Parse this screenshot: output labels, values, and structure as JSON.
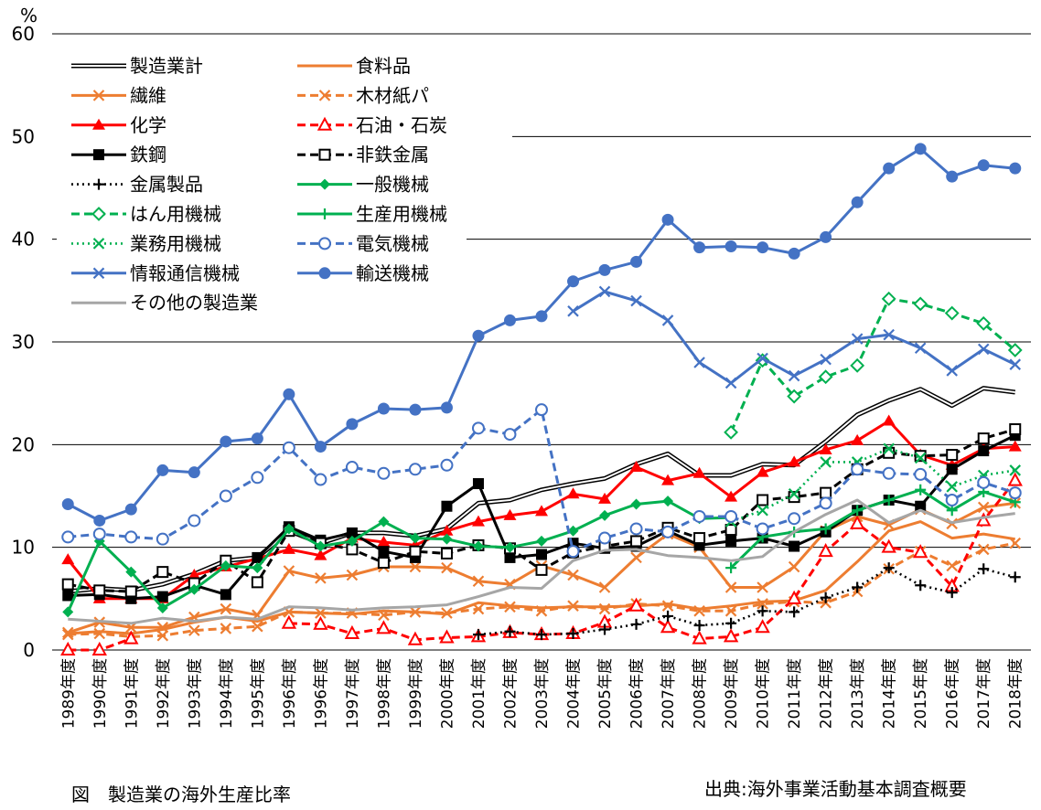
{
  "chart_data": {
    "type": "line",
    "ylabel": "%",
    "ylim": [
      0,
      60
    ],
    "yticks": [
      0,
      10,
      20,
      30,
      40,
      50,
      60
    ],
    "grid": "horizontal",
    "legend_position": "top-left",
    "categories": [
      "1989年度",
      "1990年度",
      "1991年度",
      "1992年度",
      "1993年度",
      "1994年度",
      "1995年度",
      "1996年度",
      "1996年度",
      "1997年度",
      "1998年度",
      "1999年度",
      "2000年度",
      "2001年度",
      "2002年度",
      "2003年度",
      "2004年度",
      "2005年度",
      "2006年度",
      "2007年度",
      "2008年度",
      "2009年度",
      "2010年度",
      "2011年度",
      "2012年度",
      "2013年度",
      "2014年度",
      "2015年度",
      "2016年度",
      "2017年度",
      "2018年度"
    ],
    "series": [
      {
        "name": "製造業計",
        "color": "#000000",
        "style": "double",
        "marker": "none",
        "values": [
          5.7,
          6.0,
          5.8,
          6.4,
          7.4,
          8.7,
          9.0,
          11.6,
          10.4,
          11.4,
          11.4,
          11.1,
          11.8,
          14.3,
          14.6,
          15.6,
          16.2,
          16.7,
          18.1,
          19.1,
          17.0,
          17.0,
          18.1,
          18.0,
          20.3,
          22.9,
          24.3,
          25.4,
          23.8,
          25.5,
          25.1
        ]
      },
      {
        "name": "食料品",
        "color": "#ED7D31",
        "style": "solid",
        "marker": "none",
        "values": [
          1.6,
          1.8,
          1.6,
          2.0,
          2.7,
          3.2,
          2.8,
          3.7,
          3.6,
          3.5,
          3.8,
          3.7,
          3.5,
          4.6,
          4.3,
          4.1,
          4.2,
          4.2,
          4.3,
          4.5,
          4.0,
          4.3,
          4.7,
          4.8,
          5.8,
          8.6,
          11.6,
          12.5,
          10.9,
          11.3,
          10.8
        ]
      },
      {
        "name": "繊維",
        "color": "#ED7D31",
        "style": "solid",
        "marker": "x",
        "values": [
          1.7,
          2.7,
          2.2,
          2.2,
          3.2,
          4.0,
          3.4,
          7.7,
          7.0,
          7.3,
          8.1,
          8.1,
          8.0,
          6.7,
          6.4,
          8.2,
          7.3,
          6.1,
          9.0,
          11.3,
          10.0,
          6.1,
          6.1,
          8.1,
          11.6,
          13.0,
          12.2,
          13.7,
          12.3,
          13.9,
          14.3
        ]
      },
      {
        "name": "木材紙パ",
        "color": "#ED7D31",
        "style": "dash",
        "marker": "x",
        "values": [
          1.5,
          1.6,
          1.3,
          1.4,
          1.9,
          2.1,
          2.3,
          3.7,
          3.6,
          3.6,
          3.4,
          3.7,
          3.6,
          4.0,
          4.2,
          3.8,
          4.3,
          4.0,
          4.5,
          4.3,
          3.8,
          3.8,
          4.5,
          4.7,
          4.6,
          5.7,
          7.9,
          9.6,
          8.2,
          9.8,
          10.4
        ]
      },
      {
        "name": "化学",
        "color": "#FF0000",
        "style": "solid",
        "marker": "triangle",
        "values": [
          8.8,
          5.0,
          5.0,
          5.0,
          7.3,
          8.1,
          8.9,
          9.8,
          9.2,
          10.9,
          10.5,
          10.2,
          11.6,
          12.5,
          13.1,
          13.5,
          15.2,
          14.7,
          17.8,
          16.5,
          17.2,
          14.9,
          17.3,
          18.3,
          19.5,
          20.4,
          22.3,
          19.0,
          18.0,
          19.6,
          19.8
        ]
      },
      {
        "name": "石油・石炭",
        "color": "#FF0000",
        "style": "dash",
        "marker": "triangle-open",
        "values": [
          0.0,
          0.0,
          1.1,
          null,
          null,
          null,
          null,
          2.6,
          2.5,
          1.6,
          2.1,
          1.0,
          1.2,
          1.3,
          1.7,
          1.5,
          1.6,
          2.7,
          4.3,
          2.2,
          1.1,
          1.3,
          2.2,
          5.0,
          9.6,
          12.3,
          10.0,
          9.5,
          6.2,
          12.6,
          16.5
        ]
      },
      {
        "name": "鉄鋼",
        "color": "#000000",
        "style": "solid",
        "marker": "square",
        "values": [
          5.3,
          5.4,
          5.0,
          5.2,
          6.3,
          5.4,
          9.0,
          12.0,
          10.7,
          11.4,
          9.6,
          9.0,
          14.0,
          16.2,
          9.0,
          9.3,
          10.4,
          9.9,
          10.1,
          11.6,
          10.2,
          10.6,
          10.9,
          10.1,
          11.5,
          13.6,
          14.6,
          14.0,
          17.6,
          19.4,
          20.9
        ]
      },
      {
        "name": "非鉄金属",
        "color": "#000000",
        "style": "dash",
        "marker": "square-open",
        "values": [
          6.4,
          5.8,
          5.7,
          7.6,
          6.5,
          8.7,
          6.6,
          11.6,
          10.4,
          9.8,
          8.5,
          9.6,
          9.4,
          10.2,
          9.9,
          7.8,
          9.5,
          10.1,
          10.6,
          11.9,
          10.9,
          11.7,
          14.6,
          14.9,
          15.3,
          17.6,
          19.2,
          18.9,
          19.0,
          20.6,
          21.5
        ]
      },
      {
        "name": "金属製品",
        "color": "#000000",
        "style": "dot",
        "marker": "plus",
        "values": [
          null,
          null,
          null,
          null,
          null,
          null,
          null,
          null,
          null,
          null,
          null,
          null,
          null,
          1.5,
          1.8,
          1.5,
          1.6,
          2.0,
          2.5,
          3.3,
          2.4,
          2.6,
          3.8,
          3.7,
          5.1,
          6.1,
          8.0,
          6.3,
          5.6,
          7.9,
          7.1
        ]
      },
      {
        "name": "一般機械",
        "color": "#00B050",
        "style": "solid",
        "marker": "diamond",
        "values": [
          3.7,
          10.6,
          7.6,
          4.1,
          5.9,
          8.2,
          8.0,
          11.8,
          10.1,
          10.6,
          12.5,
          10.9,
          10.8,
          10.1,
          10.0,
          10.6,
          11.6,
          13.1,
          14.2,
          14.5,
          12.8,
          12.9,
          null,
          null,
          null,
          null,
          null,
          null,
          null,
          null,
          null
        ]
      },
      {
        "name": "はん用機械",
        "color": "#00B050",
        "style": "dash",
        "marker": "diamond-open",
        "values": [
          null,
          null,
          null,
          null,
          null,
          null,
          null,
          null,
          null,
          null,
          null,
          null,
          null,
          null,
          null,
          null,
          null,
          null,
          null,
          null,
          null,
          21.2,
          28.2,
          24.7,
          26.6,
          27.7,
          34.2,
          33.7,
          32.8,
          31.8,
          29.2
        ]
      },
      {
        "name": "生産用機械",
        "color": "#00B050",
        "style": "solid",
        "marker": "plus",
        "values": [
          null,
          null,
          null,
          null,
          null,
          null,
          null,
          null,
          null,
          null,
          null,
          null,
          null,
          null,
          null,
          null,
          null,
          null,
          null,
          null,
          null,
          8.0,
          11.0,
          11.5,
          11.8,
          13.6,
          14.6,
          15.6,
          13.6,
          15.4,
          14.4
        ]
      },
      {
        "name": "業務用機械",
        "color": "#00B050",
        "style": "dot",
        "marker": "x",
        "values": [
          null,
          null,
          null,
          null,
          null,
          null,
          null,
          null,
          null,
          null,
          null,
          null,
          null,
          null,
          null,
          null,
          null,
          null,
          null,
          null,
          null,
          12.5,
          13.6,
          15.2,
          18.3,
          18.3,
          19.6,
          18.7,
          15.9,
          17.0,
          17.5
        ]
      },
      {
        "name": "電気機械",
        "color": "#4472C4",
        "style": "dash",
        "marker": "circle-open",
        "values": [
          11.0,
          11.3,
          11.0,
          10.8,
          12.6,
          15.0,
          16.8,
          19.7,
          16.6,
          17.8,
          17.2,
          17.6,
          18.0,
          21.6,
          21.0,
          23.4,
          9.6,
          10.9,
          11.8,
          11.5,
          13.0,
          13.0,
          11.8,
          12.8,
          14.3,
          17.6,
          17.2,
          17.1,
          14.6,
          16.3,
          15.3
        ]
      },
      {
        "name": "情報通信機械",
        "color": "#4472C4",
        "style": "solid",
        "marker": "x",
        "values": [
          null,
          null,
          null,
          null,
          null,
          null,
          null,
          null,
          null,
          null,
          null,
          null,
          null,
          null,
          null,
          null,
          33.0,
          34.9,
          34.0,
          32.1,
          28.0,
          26.0,
          28.4,
          26.7,
          28.3,
          30.3,
          30.7,
          29.4,
          27.2,
          29.3,
          27.8
        ]
      },
      {
        "name": "輸送機械",
        "color": "#4472C4",
        "style": "solid",
        "marker": "circle",
        "values": [
          14.2,
          12.6,
          13.7,
          17.5,
          17.3,
          20.3,
          20.6,
          24.9,
          19.8,
          22.0,
          23.5,
          23.4,
          23.6,
          30.6,
          32.1,
          32.5,
          35.9,
          37.0,
          37.8,
          41.9,
          39.2,
          39.3,
          39.2,
          38.6,
          40.2,
          43.6,
          46.9,
          48.8,
          46.1,
          47.2,
          46.9
        ]
      },
      {
        "name": "その他の製造業",
        "color": "#A6A6A6",
        "style": "solid",
        "marker": "none",
        "values": [
          3.0,
          2.8,
          2.6,
          3.1,
          2.8,
          3.2,
          3.0,
          4.2,
          4.1,
          3.9,
          4.1,
          4.2,
          4.4,
          5.2,
          6.1,
          6.0,
          8.7,
          9.7,
          9.8,
          9.2,
          9.0,
          8.7,
          9.1,
          11.5,
          13.2,
          14.6,
          12.4,
          13.6,
          12.4,
          12.9,
          13.3
        ]
      }
    ]
  },
  "captions": {
    "figure_title": "図　製造業の海外生産比率",
    "source": "出典:海外事業活動基本調査概要"
  }
}
